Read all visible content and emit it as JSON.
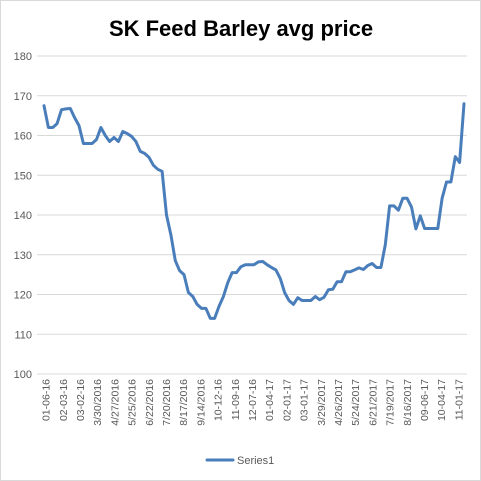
{
  "chart_data": {
    "type": "line",
    "title": "SK Feed Barley avg price",
    "xlabel": "",
    "ylabel": "",
    "ylim": [
      100,
      180
    ],
    "ytick_step": 10,
    "grid": true,
    "legend_position": "bottom",
    "colors": {
      "series1": "#4a7ebb",
      "grid": "#d9d9d9",
      "text": "#595959"
    },
    "xtick_labels": [
      "01-06-16",
      "02-03-16",
      "03-02-16",
      "3/30/2016",
      "4/27/2016",
      "5/25/2016",
      "6/22/2016",
      "7/20/2016",
      "8/17/2016",
      "9/14/2016",
      "10-12-16",
      "11-09-16",
      "12-07-16",
      "01-04-17",
      "02-01-17",
      "03-01-17",
      "3/29/2017",
      "4/26/2017",
      "5/24/2017",
      "6/21/2017",
      "7/19/2017",
      "8/16/2017",
      "09-06-17",
      "10-04-17",
      "11-01-17"
    ],
    "series": [
      {
        "name": "Series1",
        "values": [
          167.5,
          162,
          162,
          163,
          166.5,
          166.7,
          166.8,
          164.5,
          162.5,
          158,
          158,
          158,
          159,
          162,
          160,
          158.5,
          159.5,
          158.5,
          161,
          160.5,
          159.8,
          158.5,
          156,
          155.5,
          154.5,
          152.5,
          151.5,
          151,
          140,
          135,
          128.5,
          126,
          125,
          120.5,
          119.5,
          117.5,
          116.5,
          116.5,
          114,
          114,
          117,
          119.5,
          123,
          125.5,
          125.5,
          127,
          127.5,
          127.5,
          127.5,
          128.2,
          128.3,
          127.5,
          126.8,
          126.2,
          124,
          120.5,
          118.5,
          117.5,
          119.2,
          118.5,
          118.5,
          118.5,
          119.5,
          118.7,
          119.3,
          121.2,
          121.3,
          123.2,
          123.2,
          125.7,
          125.7,
          126.2,
          126.7,
          126.3,
          127.3,
          127.8,
          126.8,
          126.8,
          132.5,
          142.3,
          142.3,
          141.2,
          144.2,
          144.2,
          142,
          136.5,
          139.8,
          136.6,
          136.6,
          136.6,
          136.6,
          144.2,
          148.3,
          148.3,
          154.7,
          153.2,
          168
        ]
      }
    ]
  }
}
